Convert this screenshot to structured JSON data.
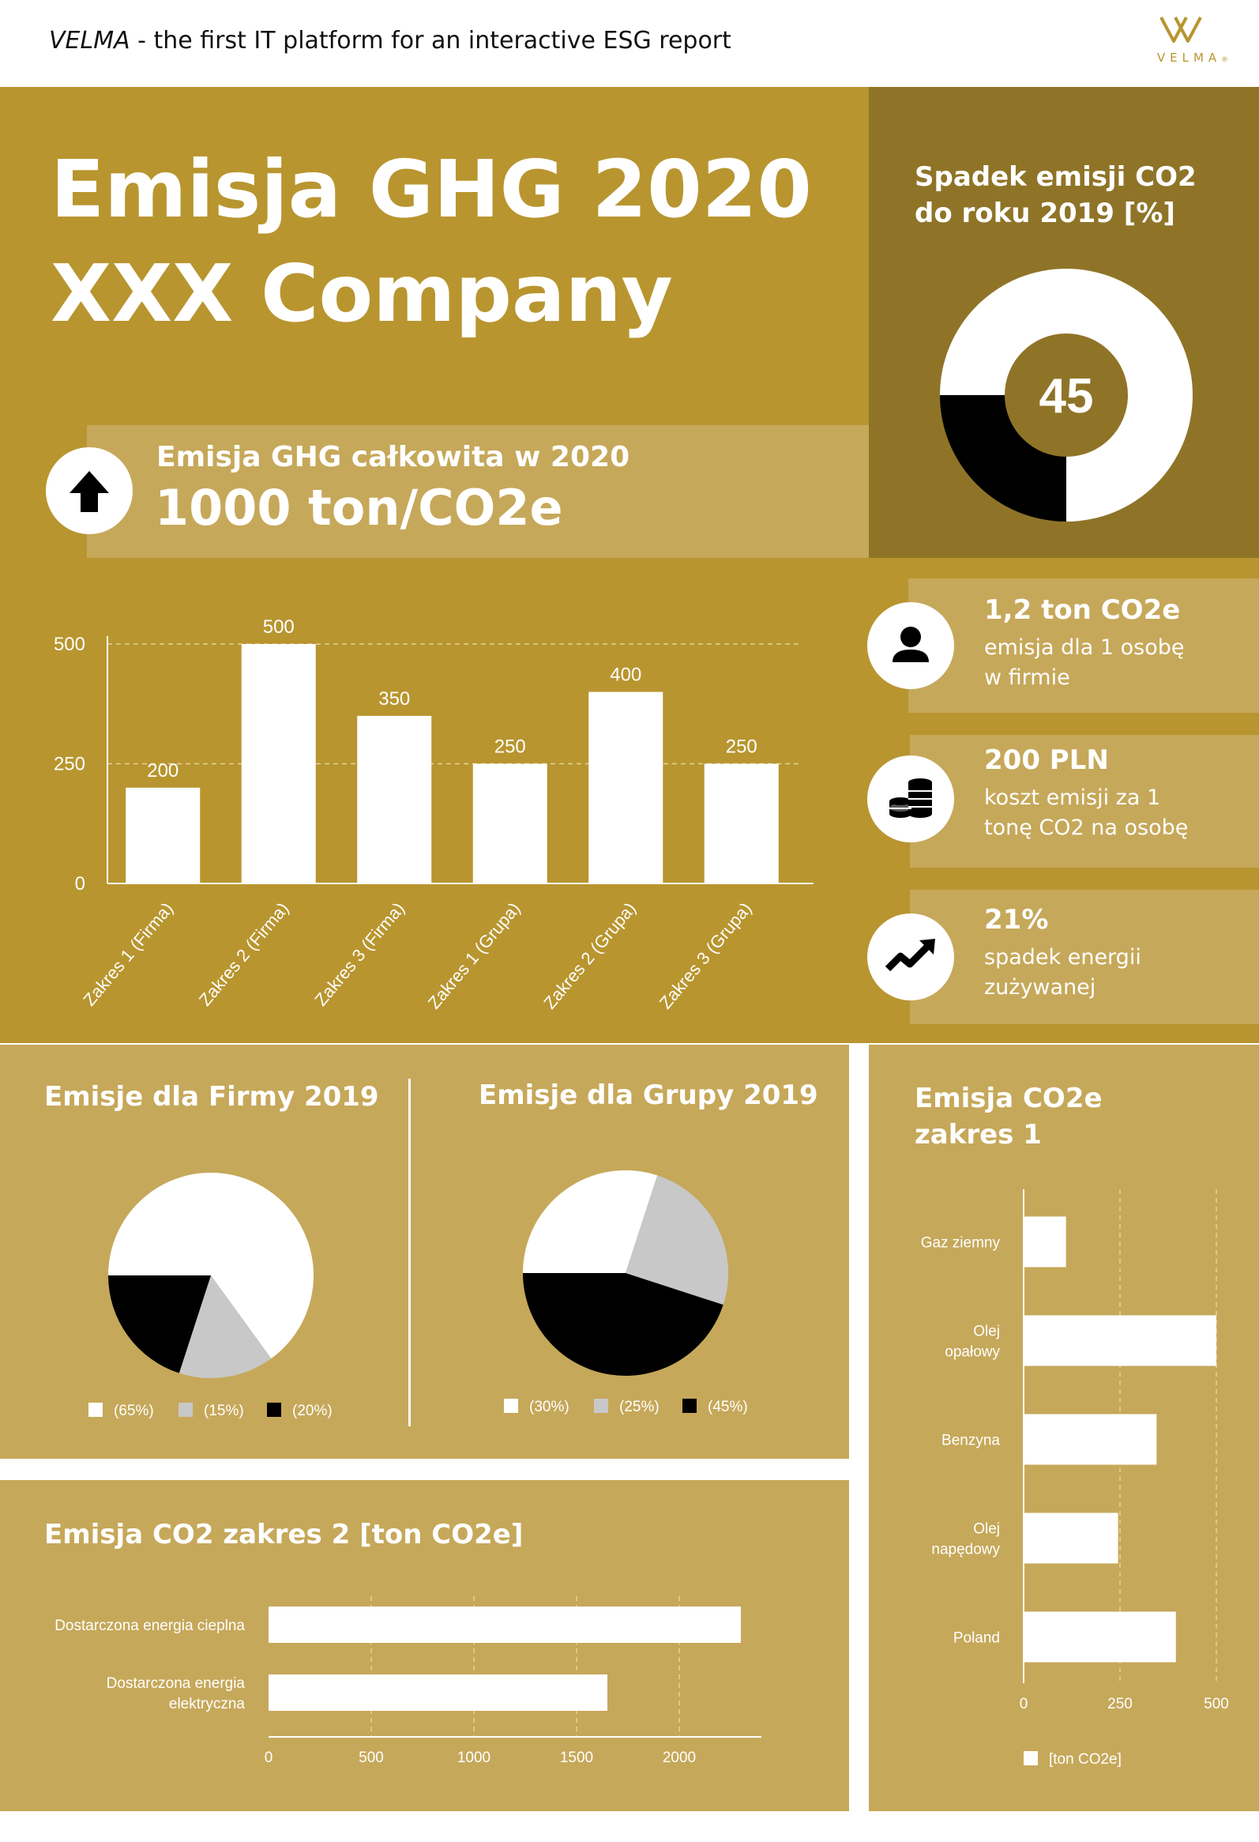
{
  "header": {
    "brand_italic": "VELMA",
    "tagline": " - the first IT platform for an interactive ESG report",
    "logo_text": "VELMA",
    "logo_reg": "®"
  },
  "hero": {
    "title_line1": "Emisja GHG 2020",
    "title_line2": "XXX Company"
  },
  "total": {
    "label": "Emisja GHG całkowita w 2020",
    "value": "1000 ton/CO2e",
    "icon": "arrow-up-icon"
  },
  "decline": {
    "title_line1": "Spadek emisji CO2",
    "title_line2": "do roku 2019 [%]",
    "value": "45",
    "percent": 45
  },
  "stats": [
    {
      "headline": "1,2 ton CO2e",
      "line1": "emisja dla 1 osobę",
      "line2": "w firmie",
      "icon": "person-icon"
    },
    {
      "headline": "200 PLN",
      "line1": "koszt emisji za 1",
      "line2": "tonę CO2 na osobę",
      "icon": "coins-icon"
    },
    {
      "headline": "21%",
      "line1": "spadek energii",
      "line2": "zużywanej",
      "icon": "trend-up-icon"
    }
  ],
  "pie_firma": {
    "title": "Emisje dla Firmy 2019"
  },
  "pie_grupa": {
    "title": "Emisje dla Grupy 2019"
  },
  "scope1": {
    "title_line1": "Emisja CO2e",
    "title_line2": "zakres 1",
    "legend": "[ton CO2e]"
  },
  "scope2": {
    "title": "Emisja CO2 zakres 2 [ton CO2e]"
  },
  "chart_data": [
    {
      "id": "ghg-bars",
      "type": "bar",
      "categories": [
        "Zakres 1 (Firma)",
        "Zakres 2 (Firma)",
        "Zakres 3 (Firma)",
        "Zakres 1 (Grupa)",
        "Zakres 2 (Grupa)",
        "Zakres 3 (Grupa)"
      ],
      "values": [
        200,
        500,
        350,
        250,
        400,
        250
      ],
      "ylim": [
        0,
        500
      ],
      "yticks": [
        0,
        250,
        500
      ],
      "grid": true
    },
    {
      "id": "pie-firma",
      "type": "pie",
      "labels": [
        "(65%)",
        "(15%)",
        "(20%)"
      ],
      "values": [
        65,
        15,
        20
      ],
      "colors": [
        "#ffffff",
        "#c8c8c8",
        "#000000"
      ]
    },
    {
      "id": "pie-grupa",
      "type": "pie",
      "labels": [
        "(30%)",
        "(25%)",
        "(45%)"
      ],
      "values": [
        30,
        25,
        45
      ],
      "colors": [
        "#ffffff",
        "#c8c8c8",
        "#000000"
      ]
    },
    {
      "id": "scope1-bars",
      "type": "bar",
      "orientation": "horizontal",
      "categories": [
        "Gaz ziemny",
        "Olej\nopałowy",
        "Benzyna",
        "Olej\nnapędowy",
        "Poland"
      ],
      "values": [
        110,
        500,
        345,
        245,
        395
      ],
      "xlim": [
        0,
        500
      ],
      "xticks": [
        0,
        250,
        500
      ],
      "grid": true
    },
    {
      "id": "scope2-bars",
      "type": "bar",
      "orientation": "horizontal",
      "categories": [
        "Dostarczona energia cieplna",
        "Dostarczona energia\nelektryczna"
      ],
      "values": [
        2300,
        1650
      ],
      "xlim": [
        0,
        2400
      ],
      "xticks": [
        0,
        500,
        1000,
        1500,
        2000
      ],
      "grid": true
    }
  ]
}
